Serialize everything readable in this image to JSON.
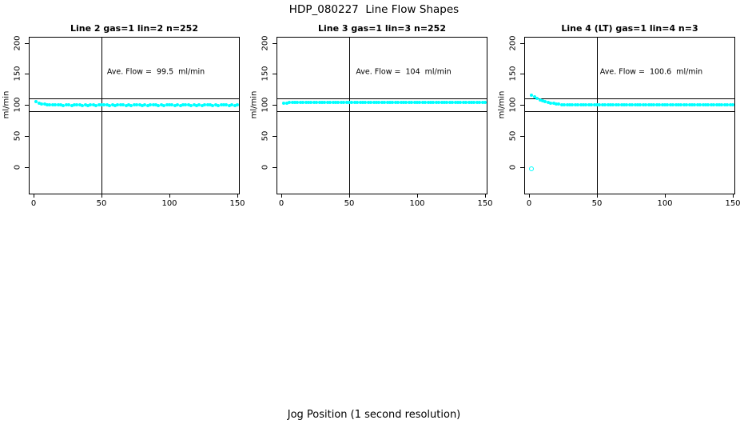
{
  "figure": {
    "title": "HDP_080227  Line Flow Shapes",
    "xlabel": "Jog Position (1 second resolution)",
    "ylabel": "ml/min",
    "colors": {
      "points": "#00FFFF",
      "lines": "#000000",
      "background": "#FFFFFF"
    }
  },
  "chart_data": [
    {
      "type": "scatter",
      "title": "Line 2 gas=1 lin=2 n=252",
      "annotation": "Ave. Flow =  99.5  ml/min",
      "ave_flow_ml_min": 99.5,
      "n": 252,
      "ylabel": "ml/min",
      "xlim": [
        0,
        150
      ],
      "ylim": [
        0,
        200
      ],
      "x_ticks": [
        0,
        50,
        100,
        150
      ],
      "y_ticks": [
        0,
        50,
        100,
        150,
        200
      ],
      "hlines": [
        90,
        110
      ],
      "vline": 50,
      "points": [
        [
          2,
          105.5
        ],
        [
          4,
          103.2
        ],
        [
          6,
          101.8
        ],
        [
          8,
          100.9
        ],
        [
          10,
          100.3
        ],
        [
          12,
          99.9
        ],
        [
          14,
          99.6
        ],
        [
          16,
          99.9
        ],
        [
          18,
          99.4
        ],
        [
          20,
          99.7
        ],
        [
          22,
          99.3
        ],
        [
          24,
          99.8
        ],
        [
          26,
          99.5
        ],
        [
          28,
          99.2
        ],
        [
          30,
          99.6
        ],
        [
          32,
          99.4
        ],
        [
          34,
          99.8
        ],
        [
          36,
          99.3
        ],
        [
          38,
          99.6
        ],
        [
          40,
          99.2
        ],
        [
          42,
          99.5
        ],
        [
          44,
          99.7
        ],
        [
          46,
          99.3
        ],
        [
          48,
          99.5
        ],
        [
          50,
          99.8
        ],
        [
          52,
          99.4
        ],
        [
          54,
          99.6
        ],
        [
          56,
          99.2
        ],
        [
          58,
          99.5
        ],
        [
          60,
          99.3
        ],
        [
          62,
          99.7
        ],
        [
          64,
          99.4
        ],
        [
          66,
          99.6
        ],
        [
          68,
          99.3
        ],
        [
          70,
          99.5
        ],
        [
          72,
          99.2
        ],
        [
          74,
          99.6
        ],
        [
          76,
          99.4
        ],
        [
          78,
          99.7
        ],
        [
          80,
          99.3
        ],
        [
          82,
          99.5
        ],
        [
          84,
          99.2
        ],
        [
          86,
          99.6
        ],
        [
          88,
          99.4
        ],
        [
          90,
          99.5
        ],
        [
          92,
          99.3
        ],
        [
          94,
          99.6
        ],
        [
          96,
          99.2
        ],
        [
          98,
          99.5
        ],
        [
          100,
          99.4
        ],
        [
          102,
          99.6
        ],
        [
          104,
          99.3
        ],
        [
          106,
          99.5
        ],
        [
          108,
          99.2
        ],
        [
          110,
          99.6
        ],
        [
          112,
          99.4
        ],
        [
          114,
          99.5
        ],
        [
          116,
          99.3
        ],
        [
          118,
          99.6
        ],
        [
          120,
          99.2
        ],
        [
          122,
          99.5
        ],
        [
          124,
          99.3
        ],
        [
          126,
          99.6
        ],
        [
          128,
          99.4
        ],
        [
          130,
          99.5
        ],
        [
          132,
          99.2
        ],
        [
          134,
          99.6
        ],
        [
          136,
          99.3
        ],
        [
          138,
          99.5
        ],
        [
          140,
          99.4
        ],
        [
          142,
          99.6
        ],
        [
          144,
          99.2
        ],
        [
          146,
          99.5
        ],
        [
          148,
          99.3
        ],
        [
          150,
          99.4
        ]
      ],
      "outliers": []
    },
    {
      "type": "scatter",
      "title": "Line 3 gas=1 lin=3 n=252",
      "annotation": "Ave. Flow =  104  ml/min",
      "ave_flow_ml_min": 104,
      "n": 252,
      "ylabel": "ml/min",
      "xlim": [
        0,
        150
      ],
      "ylim": [
        0,
        200
      ],
      "x_ticks": [
        0,
        50,
        100,
        150
      ],
      "y_ticks": [
        0,
        50,
        100,
        150,
        200
      ],
      "hlines": [
        90,
        110
      ],
      "vline": 50,
      "points": [
        [
          2,
          102.3
        ],
        [
          4,
          103.1
        ],
        [
          6,
          103.6
        ],
        [
          8,
          103.9
        ],
        [
          10,
          104.1
        ],
        [
          12,
          103.8
        ],
        [
          14,
          104.2
        ],
        [
          16,
          103.9
        ],
        [
          18,
          104.1
        ],
        [
          20,
          103.7
        ],
        [
          22,
          104.0
        ],
        [
          24,
          103.8
        ],
        [
          26,
          104.2
        ],
        [
          28,
          103.9
        ],
        [
          30,
          104.1
        ],
        [
          32,
          103.7
        ],
        [
          34,
          104.0
        ],
        [
          36,
          103.8
        ],
        [
          38,
          104.1
        ],
        [
          40,
          103.9
        ],
        [
          42,
          104.2
        ],
        [
          44,
          103.8
        ],
        [
          46,
          104.0
        ],
        [
          48,
          103.7
        ],
        [
          50,
          104.1
        ],
        [
          52,
          103.9
        ],
        [
          54,
          104.2
        ],
        [
          56,
          103.8
        ],
        [
          58,
          104.0
        ],
        [
          60,
          103.7
        ],
        [
          62,
          104.1
        ],
        [
          64,
          103.9
        ],
        [
          66,
          104.2
        ],
        [
          68,
          103.8
        ],
        [
          70,
          104.0
        ],
        [
          72,
          103.9
        ],
        [
          74,
          104.1
        ],
        [
          76,
          103.7
        ],
        [
          78,
          104.0
        ],
        [
          80,
          103.8
        ],
        [
          82,
          104.2
        ],
        [
          84,
          103.9
        ],
        [
          86,
          104.1
        ],
        [
          88,
          103.7
        ],
        [
          90,
          104.0
        ],
        [
          92,
          103.8
        ],
        [
          94,
          104.1
        ],
        [
          96,
          103.9
        ],
        [
          98,
          104.2
        ],
        [
          100,
          103.8
        ],
        [
          102,
          104.0
        ],
        [
          104,
          103.7
        ],
        [
          106,
          104.1
        ],
        [
          108,
          103.9
        ],
        [
          110,
          104.2
        ],
        [
          112,
          103.8
        ],
        [
          114,
          104.0
        ],
        [
          116,
          103.9
        ],
        [
          118,
          104.1
        ],
        [
          120,
          103.7
        ],
        [
          122,
          104.0
        ],
        [
          124,
          103.8
        ],
        [
          126,
          104.2
        ],
        [
          128,
          103.9
        ],
        [
          130,
          104.1
        ],
        [
          132,
          103.7
        ],
        [
          134,
          104.0
        ],
        [
          136,
          103.8
        ],
        [
          138,
          104.1
        ],
        [
          140,
          103.9
        ],
        [
          142,
          104.2
        ],
        [
          144,
          103.8
        ],
        [
          146,
          104.0
        ],
        [
          148,
          103.9
        ],
        [
          150,
          104.1
        ]
      ],
      "outliers": []
    },
    {
      "type": "scatter",
      "title": "Line 4 (LT) gas=1 lin=4 n=3",
      "annotation": "Ave. Flow =  100.6  ml/min",
      "ave_flow_ml_min": 100.6,
      "n": 3,
      "ylabel": "ml/min",
      "xlim": [
        0,
        150
      ],
      "ylim": [
        0,
        200
      ],
      "x_ticks": [
        0,
        50,
        100,
        150
      ],
      "y_ticks": [
        0,
        50,
        100,
        150,
        200
      ],
      "hlines": [
        90,
        110
      ],
      "vline": 50,
      "points": [
        [
          2,
          115.3
        ],
        [
          4,
          112.4
        ],
        [
          6,
          109.9
        ],
        [
          8,
          107.8
        ],
        [
          10,
          106.1
        ],
        [
          12,
          104.7
        ],
        [
          14,
          103.6
        ],
        [
          16,
          102.7
        ],
        [
          18,
          102.0
        ],
        [
          20,
          101.4
        ],
        [
          22,
          101.0
        ],
        [
          24,
          100.6
        ],
        [
          26,
          100.4
        ],
        [
          28,
          100.2
        ],
        [
          30,
          100.1
        ],
        [
          32,
          100.0
        ],
        [
          34,
          99.9
        ],
        [
          36,
          99.8
        ],
        [
          38,
          99.9
        ],
        [
          40,
          99.7
        ],
        [
          42,
          99.9
        ],
        [
          44,
          99.8
        ],
        [
          46,
          100.0
        ],
        [
          48,
          99.7
        ],
        [
          50,
          99.9
        ],
        [
          52,
          99.8
        ],
        [
          54,
          100.0
        ],
        [
          56,
          99.7
        ],
        [
          58,
          99.9
        ],
        [
          60,
          99.8
        ],
        [
          62,
          100.0
        ],
        [
          64,
          99.7
        ],
        [
          66,
          99.9
        ],
        [
          68,
          99.8
        ],
        [
          70,
          99.9
        ],
        [
          72,
          99.7
        ],
        [
          74,
          100.0
        ],
        [
          76,
          99.8
        ],
        [
          78,
          99.9
        ],
        [
          80,
          99.7
        ],
        [
          82,
          100.0
        ],
        [
          84,
          99.8
        ],
        [
          86,
          99.9
        ],
        [
          88,
          99.7
        ],
        [
          90,
          99.9
        ],
        [
          92,
          99.8
        ],
        [
          94,
          100.0
        ],
        [
          96,
          99.7
        ],
        [
          98,
          99.9
        ],
        [
          100,
          99.8
        ],
        [
          102,
          100.0
        ],
        [
          104,
          99.7
        ],
        [
          106,
          99.9
        ],
        [
          108,
          99.8
        ],
        [
          110,
          99.9
        ],
        [
          112,
          99.7
        ],
        [
          114,
          100.0
        ],
        [
          116,
          99.8
        ],
        [
          118,
          99.9
        ],
        [
          120,
          99.7
        ],
        [
          122,
          100.0
        ],
        [
          124,
          99.8
        ],
        [
          126,
          99.9
        ],
        [
          128,
          99.7
        ],
        [
          130,
          99.9
        ],
        [
          132,
          99.8
        ],
        [
          134,
          100.0
        ],
        [
          136,
          99.7
        ],
        [
          138,
          99.9
        ],
        [
          140,
          99.8
        ],
        [
          142,
          100.0
        ],
        [
          144,
          99.7
        ],
        [
          146,
          99.9
        ],
        [
          148,
          99.8
        ],
        [
          150,
          99.9
        ]
      ],
      "outliers": [
        [
          2,
          -3
        ]
      ]
    }
  ]
}
